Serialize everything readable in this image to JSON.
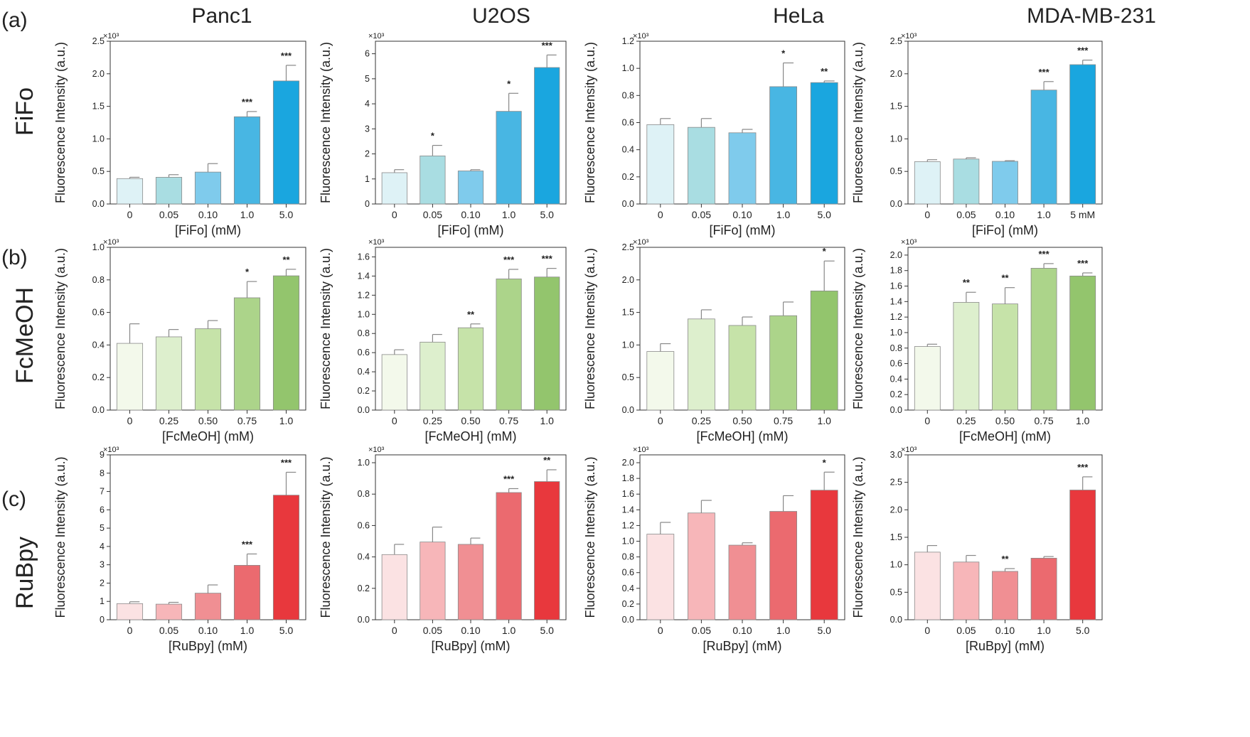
{
  "columns": [
    "Panc1",
    "U2OS",
    "HeLa",
    "MDA-MB-231"
  ],
  "rows": [
    {
      "label": "FiFo",
      "panel": "(a)"
    },
    {
      "label": "FcMeOH",
      "panel": "(b)"
    },
    {
      "label": "RuBpy",
      "panel": "(c)"
    }
  ],
  "colors": {
    "FiFo": [
      "#def2f6",
      "#a9dde2",
      "#7fcbec",
      "#48b6e3",
      "#1aa6df"
    ],
    "FcMeOH": [
      "#f3f9eb",
      "#ddefcd",
      "#c6e3a9",
      "#acd48a",
      "#93c56d"
    ],
    "RuBpy": [
      "#fbe2e3",
      "#f7b6b9",
      "#f08f93",
      "#eb6a6f",
      "#e8383d"
    ]
  },
  "chart_data": [
    {
      "type": "bar",
      "row": "FiFo",
      "cell": "Panc1",
      "ylabel": "Fluorescence Intensity (a.u.)",
      "multiplier": "×10³",
      "xlabel": "[FiFo] (mM)",
      "categories": [
        "0",
        "0.05",
        "0.10",
        "1.0",
        "5.0"
      ],
      "values": [
        0.39,
        0.41,
        0.49,
        1.34,
        1.89
      ],
      "errors": [
        0.02,
        0.04,
        0.13,
        0.08,
        0.24
      ],
      "significance": [
        "",
        "",
        "",
        "***",
        "***"
      ],
      "ylim": [
        0,
        2.5
      ],
      "yticks": [
        "0.0",
        "0.5",
        "1.0",
        "1.5",
        "2.0",
        "2.5"
      ]
    },
    {
      "type": "bar",
      "row": "FiFo",
      "cell": "U2OS",
      "ylabel": "Fluorescence Intensity (a.u.)",
      "multiplier": "×10³",
      "xlabel": "[FiFo] (mM)",
      "categories": [
        "0",
        "0.05",
        "0.10",
        "1.0",
        "5.0"
      ],
      "values": [
        1.25,
        1.92,
        1.32,
        3.7,
        5.45
      ],
      "errors": [
        0.12,
        0.42,
        0.05,
        0.72,
        0.5
      ],
      "significance": [
        "",
        "*",
        "",
        "*",
        "***"
      ],
      "ylim": [
        0,
        6.5
      ],
      "yticks": [
        "0",
        "1",
        "2",
        "3",
        "4",
        "5",
        "6"
      ]
    },
    {
      "type": "bar",
      "row": "FiFo",
      "cell": "HeLa",
      "ylabel": "Fluorescence Intensity (a.u.)",
      "multiplier": "×10³",
      "xlabel": "[FiFo] (mM)",
      "categories": [
        "0",
        "0.05",
        "0.10",
        "1.0",
        "5.0"
      ],
      "values": [
        0.585,
        0.565,
        0.525,
        0.865,
        0.895
      ],
      "errors": [
        0.045,
        0.065,
        0.025,
        0.175,
        0.012
      ],
      "significance": [
        "",
        "",
        "",
        "*",
        "**"
      ],
      "ylim": [
        0,
        1.2
      ],
      "yticks": [
        "0.0",
        "0.2",
        "0.4",
        "0.6",
        "0.8",
        "1.0",
        "1.2"
      ]
    },
    {
      "type": "bar",
      "row": "FiFo",
      "cell": "MDA-MB-231",
      "ylabel": "Fluorescence Intensity (a.u.)",
      "multiplier": "×10³",
      "xlabel": "[FiFo] (mM)",
      "categories": [
        "0",
        "0.05",
        "0.10",
        "1.0",
        "5 mM"
      ],
      "values": [
        0.65,
        0.69,
        0.655,
        1.75,
        2.14
      ],
      "errors": [
        0.03,
        0.02,
        0.01,
        0.13,
        0.07
      ],
      "significance": [
        "",
        "",
        "",
        "***",
        "***"
      ],
      "ylim": [
        0,
        2.5
      ],
      "yticks": [
        "0.0",
        "0.5",
        "1.0",
        "1.5",
        "2.0",
        "2.5"
      ]
    },
    {
      "type": "bar",
      "row": "FcMeOH",
      "cell": "Panc1",
      "ylabel": "Fluorescence Intensity (a.u.)",
      "multiplier": "×10³",
      "xlabel": "[FcMeOH] (mM)",
      "categories": [
        "0",
        "0.25",
        "0.50",
        "0.75",
        "1.0"
      ],
      "values": [
        0.41,
        0.45,
        0.5,
        0.69,
        0.825
      ],
      "errors": [
        0.12,
        0.045,
        0.05,
        0.1,
        0.04
      ],
      "significance": [
        "",
        "",
        "",
        "*",
        "**"
      ],
      "ylim": [
        0,
        1.0
      ],
      "yticks": [
        "0.0",
        "0.2",
        "0.4",
        "0.6",
        "0.8",
        "1.0"
      ]
    },
    {
      "type": "bar",
      "row": "FcMeOH",
      "cell": "U2OS",
      "ylabel": "Fluorescence Intensity (a.u.)",
      "multiplier": "×10³",
      "xlabel": "[FcMeOH] (mM)",
      "categories": [
        "0",
        "0.25",
        "0.50",
        "0.75",
        "1.0"
      ],
      "values": [
        0.58,
        0.71,
        0.86,
        1.37,
        1.39
      ],
      "errors": [
        0.05,
        0.08,
        0.04,
        0.1,
        0.09
      ],
      "significance": [
        "",
        "",
        "**",
        "***",
        "***"
      ],
      "ylim": [
        0,
        1.7
      ],
      "yticks": [
        "0.0",
        "0.2",
        "0.4",
        "0.6",
        "0.8",
        "1.0",
        "1.2",
        "1.4",
        "1.6"
      ]
    },
    {
      "type": "bar",
      "row": "FcMeOH",
      "cell": "HeLa",
      "ylabel": "Fluorescence Intensity (a.u.)",
      "multiplier": "×10³",
      "xlabel": "[FcMeOH] (mM)",
      "categories": [
        "0",
        "0.25",
        "0.50",
        "0.75",
        "1.0"
      ],
      "values": [
        0.9,
        1.4,
        1.3,
        1.45,
        1.83
      ],
      "errors": [
        0.12,
        0.14,
        0.13,
        0.21,
        0.46
      ],
      "significance": [
        "",
        "",
        "",
        "",
        "*"
      ],
      "ylim": [
        0,
        2.5
      ],
      "yticks": [
        "0.0",
        "0.5",
        "1.0",
        "1.5",
        "2.0",
        "2.5"
      ]
    },
    {
      "type": "bar",
      "row": "FcMeOH",
      "cell": "MDA-MB-231",
      "ylabel": "Fluorescence Intensity (a.u.)",
      "multiplier": "×10³",
      "xlabel": "[FcMeOH] (mM)",
      "categories": [
        "0",
        "0.25",
        "0.50",
        "0.75",
        "1.0"
      ],
      "values": [
        0.82,
        1.39,
        1.37,
        1.83,
        1.73
      ],
      "errors": [
        0.03,
        0.13,
        0.21,
        0.06,
        0.04
      ],
      "significance": [
        "",
        "**",
        "**",
        "***",
        "***"
      ],
      "ylim": [
        0,
        2.1
      ],
      "yticks": [
        "0.0",
        "0.2",
        "0.4",
        "0.6",
        "0.8",
        "1.0",
        "1.2",
        "1.4",
        "1.6",
        "1.8",
        "2.0"
      ]
    },
    {
      "type": "bar",
      "row": "RuBpy",
      "cell": "Panc1",
      "ylabel": "Fluorescence Intensity (a.u.)",
      "multiplier": "×10³",
      "xlabel": "[RuBpy] (mM)",
      "categories": [
        "0",
        "0.05",
        "0.10",
        "1.0",
        "5.0"
      ],
      "values": [
        0.88,
        0.85,
        1.45,
        2.97,
        6.8
      ],
      "errors": [
        0.1,
        0.1,
        0.45,
        0.62,
        1.25
      ],
      "significance": [
        "",
        "",
        "",
        "***",
        "***"
      ],
      "ylim": [
        0,
        9
      ],
      "yticks": [
        "0",
        "1",
        "2",
        "3",
        "4",
        "5",
        "6",
        "7",
        "8",
        "9"
      ]
    },
    {
      "type": "bar",
      "row": "RuBpy",
      "cell": "U2OS",
      "ylabel": "Fluorescence Intensity (a.u.)",
      "multiplier": "×10³",
      "xlabel": "[RuBpy] (mM)",
      "categories": [
        "0",
        "0.05",
        "0.10",
        "1.0",
        "5.0"
      ],
      "values": [
        0.415,
        0.495,
        0.48,
        0.81,
        0.88
      ],
      "errors": [
        0.065,
        0.095,
        0.04,
        0.025,
        0.075
      ],
      "significance": [
        "",
        "",
        "",
        "***",
        "**"
      ],
      "ylim": [
        0,
        1.05
      ],
      "yticks": [
        "0.0",
        "0.2",
        "0.4",
        "0.6",
        "0.8",
        "1.0"
      ]
    },
    {
      "type": "bar",
      "row": "RuBpy",
      "cell": "HeLa",
      "ylabel": "Fluorescence Intensity (a.u.)",
      "multiplier": "×10³",
      "xlabel": "[RuBpy] (mM)",
      "categories": [
        "0",
        "0.05",
        "0.10",
        "1.0",
        "5.0"
      ],
      "values": [
        1.09,
        1.36,
        0.95,
        1.38,
        1.65
      ],
      "errors": [
        0.15,
        0.16,
        0.03,
        0.2,
        0.23
      ],
      "significance": [
        "",
        "",
        "",
        "",
        "*"
      ],
      "ylim": [
        0,
        2.1
      ],
      "yticks": [
        "0.0",
        "0.2",
        "0.4",
        "0.6",
        "0.8",
        "1.0",
        "1.2",
        "1.4",
        "1.6",
        "1.8",
        "2.0"
      ]
    },
    {
      "type": "bar",
      "row": "RuBpy",
      "cell": "MDA-MB-231",
      "ylabel": "Fluorescence Intensity (a.u.)",
      "multiplier": "×10³",
      "xlabel": "[RuBpy] (mM)",
      "categories": [
        "0",
        "0.05",
        "0.10",
        "1.0",
        "5.0"
      ],
      "values": [
        1.23,
        1.05,
        0.88,
        1.12,
        2.36
      ],
      "errors": [
        0.12,
        0.12,
        0.05,
        0.03,
        0.24
      ],
      "significance": [
        "",
        "",
        "**",
        "",
        ""
      ],
      "ylim": [
        0,
        3.0
      ],
      "yticks": [
        "0.0",
        "0.5",
        "1.0",
        "1.5",
        "2.0",
        "2.5",
        "3.0"
      ],
      "extra_star": {
        "bar": 4,
        "text": "***"
      }
    }
  ]
}
